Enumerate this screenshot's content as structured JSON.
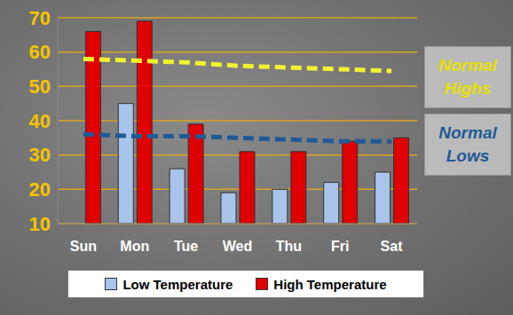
{
  "chart_data": {
    "type": "bar",
    "categories": [
      "Sun",
      "Mon",
      "Tue",
      "Wed",
      "Thu",
      "Fri",
      "Sat"
    ],
    "series": [
      {
        "name": "Low Temperature",
        "type": "bar",
        "color": "#a9c4eb",
        "values": [
          null,
          45,
          26,
          19,
          20,
          22,
          25
        ]
      },
      {
        "name": "High Temperature",
        "type": "bar",
        "color": "#e00000",
        "values": [
          66,
          69,
          39,
          31,
          31,
          34,
          35
        ]
      },
      {
        "name": "Normal Highs",
        "type": "line",
        "line_style": "dashed",
        "color": "#f2f230",
        "values": [
          58,
          57.5,
          57,
          56,
          55.5,
          55,
          54.5
        ]
      },
      {
        "name": "Normal Lows",
        "type": "line",
        "line_style": "dashed",
        "color": "#1f5a96",
        "values": [
          36,
          35.5,
          35.5,
          35,
          34.5,
          34,
          34
        ]
      }
    ],
    "ylim": [
      10,
      70
    ],
    "yticks": [
      10,
      20,
      30,
      40,
      50,
      60,
      70
    ],
    "grid": true,
    "legend": "bottom"
  }
}
